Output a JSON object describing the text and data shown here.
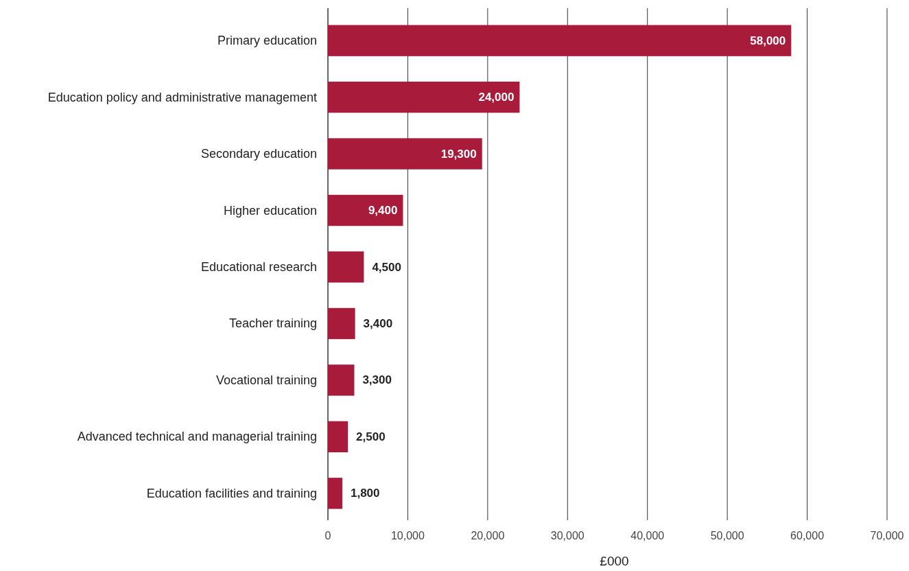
{
  "chart_data": {
    "type": "bar",
    "orientation": "horizontal",
    "categories": [
      "Primary education",
      "Education policy and administrative management",
      "Secondary education",
      "Higher education",
      "Educational research",
      "Teacher training",
      "Vocational training",
      "Advanced technical and managerial training",
      "Education facilities and training"
    ],
    "values": [
      58000,
      24000,
      19300,
      9400,
      4500,
      3400,
      3300,
      2500,
      1800
    ],
    "color": "#a81b3b",
    "xlim": [
      0,
      70000
    ],
    "xticks": [
      {
        "value": 0,
        "label": "0"
      },
      {
        "value": 10000,
        "label": "10,000"
      },
      {
        "value": 20000,
        "label": "20,000"
      },
      {
        "value": 30000,
        "label": "30,000"
      },
      {
        "value": 40000,
        "label": "40,000"
      },
      {
        "value": 50000,
        "label": "50,000"
      },
      {
        "value": 60000,
        "label": "60,000"
      },
      {
        "value": 70000,
        "label": "70,000"
      }
    ],
    "xlabel": "£000",
    "value_labels": [
      "58,000",
      "24,000",
      "19,300",
      "9,400",
      "4,500",
      "3,400",
      "3,300",
      "2,500",
      "1,800"
    ],
    "grid": "x"
  }
}
